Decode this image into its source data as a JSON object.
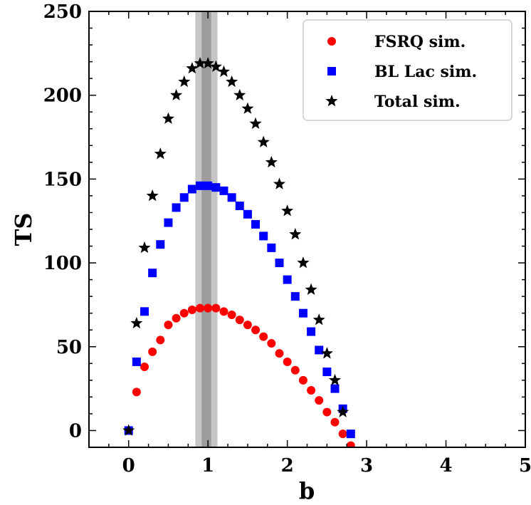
{
  "chart_data": {
    "type": "scatter",
    "xlabel": "b",
    "ylabel": "TS",
    "xlim": [
      -0.5,
      5
    ],
    "ylim": [
      -10,
      250
    ],
    "xticks": [
      0,
      1,
      2,
      3,
      4,
      5
    ],
    "yticks": [
      0,
      50,
      100,
      150,
      200,
      250
    ],
    "legend_position": "upper-right",
    "x": [
      0.0,
      0.1,
      0.2,
      0.3,
      0.4,
      0.5,
      0.6,
      0.7,
      0.8,
      0.9,
      1.0,
      1.1,
      1.2,
      1.3,
      1.4,
      1.5,
      1.6,
      1.7,
      1.8,
      1.9,
      2.0,
      2.1,
      2.2,
      2.3,
      2.4,
      2.5,
      2.6,
      2.7,
      2.8
    ],
    "series": [
      {
        "name": "FSRQ sim.",
        "marker": "circle",
        "color": "#ff0000",
        "values": [
          0,
          23,
          38,
          47,
          54,
          63,
          67,
          70,
          72,
          73,
          73,
          73,
          71,
          69,
          66,
          63,
          60,
          56,
          52,
          46,
          41,
          36,
          30,
          24,
          18,
          11,
          5,
          -2,
          -9
        ]
      },
      {
        "name": "BL Lac sim.",
        "marker": "square",
        "color": "#0000ff",
        "values": [
          0,
          41,
          71,
          94,
          111,
          124,
          133,
          139,
          144,
          146,
          146,
          145,
          143,
          139,
          134,
          129,
          123,
          116,
          109,
          100,
          90,
          80,
          70,
          59,
          48,
          35,
          25,
          13,
          -2
        ]
      },
      {
        "name": "Total sim.",
        "marker": "star",
        "color": "#000000",
        "values": [
          0,
          64,
          109,
          140,
          165,
          186,
          200,
          208,
          216,
          219,
          219,
          217,
          214,
          208,
          200,
          192,
          183,
          172,
          160,
          147,
          131,
          117,
          100,
          84,
          66,
          46,
          30,
          11,
          null
        ]
      }
    ],
    "band": {
      "center": 0.98,
      "outer_halfwidth": 0.14,
      "inner_halfwidth": 0.06,
      "color": "#808080"
    }
  }
}
